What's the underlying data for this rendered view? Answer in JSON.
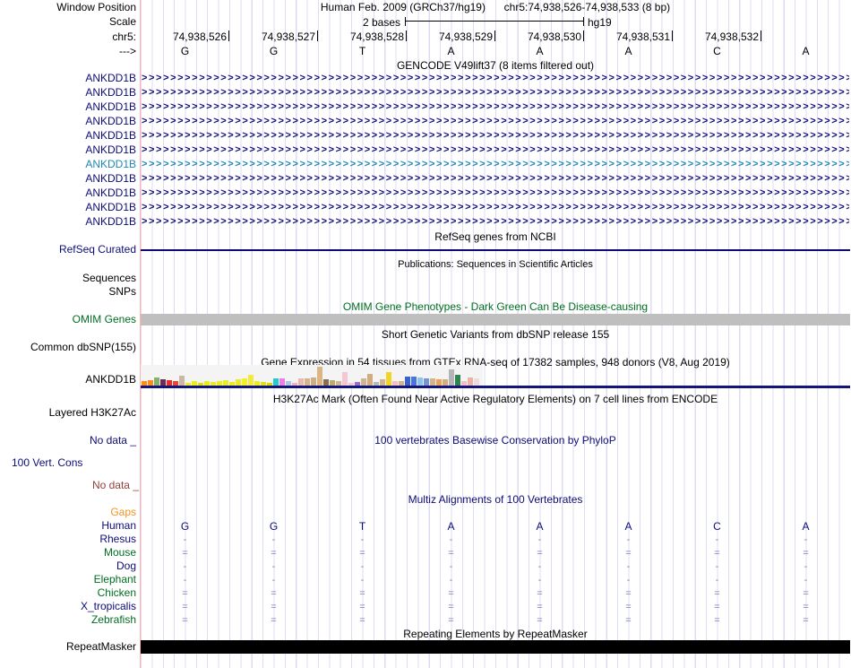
{
  "colors": {
    "navy": "#0c0c78",
    "teal_highlight": "#1e87b7",
    "dark_green": "#006e21",
    "orange": "#ee9522",
    "maroon": "#91423c",
    "alignment_dash_blue": "#7b82bb",
    "grid_line": "#dedcf2",
    "left_edge_line": "#ffb3ab",
    "omim_bar_gray": "#bfbfbf",
    "gtex_baseline_navy": "#14147a",
    "repeat_bar_black": "#000000"
  },
  "header": {
    "window_position_label": "Window Position",
    "assembly_title": "Human Feb. 2009 (GRCh37/hg19)",
    "position_title": "chr5:74,938,526-74,938,533 (8 bp)",
    "scale_label": "Scale",
    "scale_value": "2 bases",
    "assembly_short": "hg19",
    "chromosome_label": "chr5:",
    "strand_label": "--->",
    "coordinates": [
      "74,938,526",
      "74,938,527",
      "74,938,528",
      "74,938,529",
      "74,938,530",
      "74,938,531",
      "74,938,532"
    ],
    "bases": [
      "G",
      "G",
      "T",
      "A",
      "A",
      "A",
      "C",
      "A"
    ]
  },
  "gencode": {
    "title": "GENCODE V49lift37 (8 items filtered out)",
    "rows": [
      {
        "label": "ANKDD1B",
        "highlighted": false
      },
      {
        "label": "ANKDD1B",
        "highlighted": false
      },
      {
        "label": "ANKDD1B",
        "highlighted": false
      },
      {
        "label": "ANKDD1B",
        "highlighted": false
      },
      {
        "label": "ANKDD1B",
        "highlighted": false
      },
      {
        "label": "ANKDD1B",
        "highlighted": false
      },
      {
        "label": "ANKDD1B",
        "highlighted": true
      },
      {
        "label": "ANKDD1B",
        "highlighted": false
      },
      {
        "label": "ANKDD1B",
        "highlighted": false
      },
      {
        "label": "ANKDD1B",
        "highlighted": false
      },
      {
        "label": "ANKDD1B",
        "highlighted": false
      }
    ]
  },
  "refseq": {
    "title": "RefSeq genes from NCBI",
    "label": "RefSeq Curated"
  },
  "publications": {
    "title": "Publications: Sequences in Scientific Articles",
    "sequences_label": "Sequences",
    "snps_label": "SNPs"
  },
  "omim": {
    "title": "OMIM Gene Phenotypes - Dark Green Can Be Disease-causing",
    "label": "OMIM Genes"
  },
  "dbsnp": {
    "title": "Short Genetic Variants from dbSNP release 155",
    "label": "Common dbSNP(155)"
  },
  "gtex": {
    "title": "Gene Expression in 54 tissues from GTEx RNA-seq of 17382 samples, 948 donors (V8, Aug 2019)",
    "label": "ANKDD1B"
  },
  "h3k27ac": {
    "title": "H3K27Ac Mark (Often Found Near Active Regulatory Elements) on 7 cell lines from ENCODE",
    "label": "Layered H3K27Ac",
    "no_data": "No data _"
  },
  "conservation": {
    "title": "100 vertebrates Basewise Conservation by PhyloP",
    "label": "100 Vert. Cons",
    "no_data": "No data _"
  },
  "multiz": {
    "title": "Multiz Alignments of 100 Vertebrates",
    "gaps_label": "Gaps",
    "species": [
      {
        "name": "Human",
        "label_color": "navy",
        "cells": [
          "G",
          "G",
          "T",
          "A",
          "A",
          "A",
          "C",
          "A"
        ]
      },
      {
        "name": "Rhesus",
        "label_color": "navy",
        "cells": [
          "-",
          "-",
          "-",
          "-",
          "-",
          "-",
          "-",
          "-"
        ]
      },
      {
        "name": "Mouse",
        "label_color": "green",
        "cells": [
          "=",
          "=",
          "=",
          "=",
          "=",
          "=",
          "=",
          "="
        ]
      },
      {
        "name": "Dog",
        "label_color": "navy",
        "cells": [
          "-",
          "-",
          "-",
          "-",
          "-",
          "-",
          "-",
          "-"
        ]
      },
      {
        "name": "Elephant",
        "label_color": "green",
        "cells": [
          "-",
          "-",
          "-",
          "-",
          "-",
          "-",
          "-",
          "-"
        ]
      },
      {
        "name": "Chicken",
        "label_color": "green",
        "cells": [
          "=",
          "=",
          "=",
          "=",
          "=",
          "=",
          "=",
          "="
        ]
      },
      {
        "name": "X_tropicalis",
        "label_color": "navy",
        "cells": [
          "=",
          "=",
          "=",
          "=",
          "=",
          "=",
          "=",
          "="
        ]
      },
      {
        "name": "Zebrafish",
        "label_color": "green",
        "cells": [
          "=",
          "=",
          "=",
          "=",
          "=",
          "=",
          "=",
          "="
        ]
      }
    ]
  },
  "repeatmasker": {
    "title": "Repeating Elements by RepeatMasker",
    "label": "RepeatMasker"
  },
  "chart_data": {
    "type": "bar",
    "title": "Gene Expression in 54 tissues from GTEx RNA-seq of 17382 samples, 948 donors (V8, Aug 2019)",
    "gene": "ANKDD1B",
    "note": "relative median expression per tissue; heights in px (max 22), colors are GTEx tissue colors",
    "bars": [
      {
        "color": "#ff8c1a",
        "h": 6
      },
      {
        "color": "#ff8c1a",
        "h": 7
      },
      {
        "color": "#82b26e",
        "h": 10
      },
      {
        "color": "#722b58",
        "h": 8
      },
      {
        "color": "#e03030",
        "h": 7
      },
      {
        "color": "#ee4433",
        "h": 6
      },
      {
        "color": "#c9b9a4",
        "h": 12
      },
      {
        "color": "#ecec22",
        "h": 4
      },
      {
        "color": "#ecec22",
        "h": 6
      },
      {
        "color": "#e0e000",
        "h": 4
      },
      {
        "color": "#ecec22",
        "h": 6
      },
      {
        "color": "#ecec22",
        "h": 5
      },
      {
        "color": "#ecec22",
        "h": 6
      },
      {
        "color": "#ecec22",
        "h": 7
      },
      {
        "color": "#ecec22",
        "h": 5
      },
      {
        "color": "#ecec22",
        "h": 8
      },
      {
        "color": "#f0f032",
        "h": 9
      },
      {
        "color": "#f5e93c",
        "h": 13
      },
      {
        "color": "#ecec22",
        "h": 6
      },
      {
        "color": "#e2e210",
        "h": 5
      },
      {
        "color": "#d9d900",
        "h": 4
      },
      {
        "color": "#22cdcd",
        "h": 9
      },
      {
        "color": "#ea7fe8",
        "h": 9
      },
      {
        "color": "#a8c8ea",
        "h": 6
      },
      {
        "color": "#f3b0c4",
        "h": 4
      },
      {
        "color": "#eab6ae",
        "h": 9
      },
      {
        "color": "#d4b48e",
        "h": 9
      },
      {
        "color": "#cfae84",
        "h": 10
      },
      {
        "color": "#dcb584",
        "h": 22
      },
      {
        "color": "#8c6f52",
        "h": 8
      },
      {
        "color": "#b8ac6e",
        "h": 7
      },
      {
        "color": "#d4b48e",
        "h": 6
      },
      {
        "color": "#f6c6d2",
        "h": 16
      },
      {
        "color": "#f6c6d2",
        "h": 4
      },
      {
        "color": "#9a6ece",
        "h": 5
      },
      {
        "color": "#d4b48e",
        "h": 9
      },
      {
        "color": "#d2ac80",
        "h": 14
      },
      {
        "color": "#b8b8b8",
        "h": 5
      },
      {
        "color": "#d4b48e",
        "h": 8
      },
      {
        "color": "#f2d426",
        "h": 16
      },
      {
        "color": "#f6bcc8",
        "h": 6
      },
      {
        "color": "#d4b48e",
        "h": 6
      },
      {
        "color": "#3a62c8",
        "h": 11
      },
      {
        "color": "#4a74e0",
        "h": 11
      },
      {
        "color": "#8cc4ea",
        "h": 10
      },
      {
        "color": "#7694d4",
        "h": 9
      },
      {
        "color": "#d4b48e",
        "h": 9
      },
      {
        "color": "#f0a050",
        "h": 8
      },
      {
        "color": "#cfae84",
        "h": 8
      },
      {
        "color": "#b4b4b4",
        "h": 19
      },
      {
        "color": "#2e8450",
        "h": 13
      },
      {
        "color": "#f6bcc8",
        "h": 6
      },
      {
        "color": "#e8b4ac",
        "h": 10
      },
      {
        "color": "#f3dada",
        "h": 9
      }
    ]
  }
}
